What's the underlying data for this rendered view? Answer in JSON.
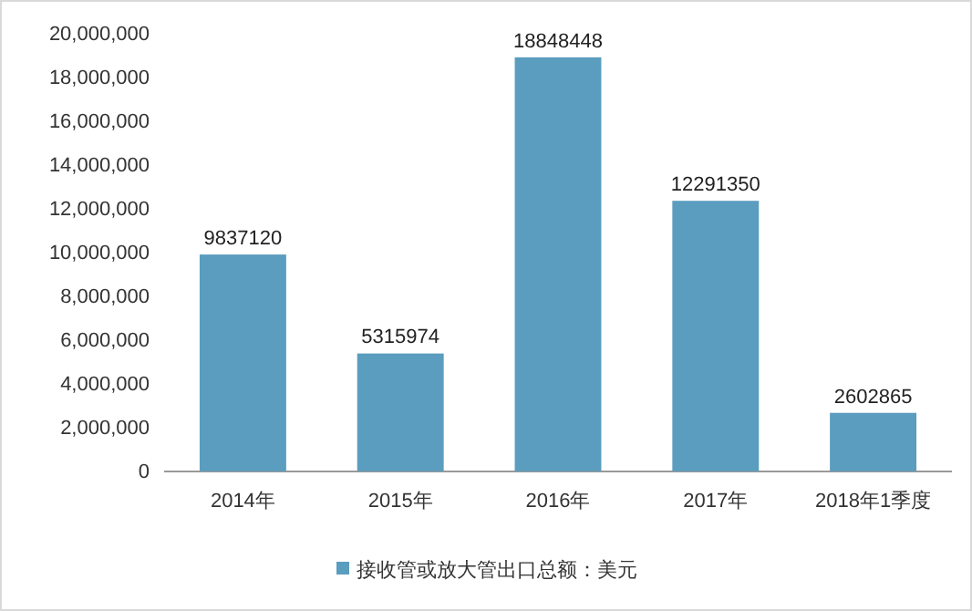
{
  "chart_data": {
    "type": "bar",
    "categories": [
      "2014年",
      "2015年",
      "2016年",
      "2017年",
      "2018年1季度"
    ],
    "series": [
      {
        "name": "接收管或放大管出口总额：美元",
        "color": "#5b9dbf",
        "values": [
          9837120,
          5315974,
          18848448,
          12291350,
          2602865
        ]
      }
    ],
    "ylim": [
      0,
      20000000
    ],
    "yticks": [
      {
        "value": 0,
        "label": "0"
      },
      {
        "value": 2000000,
        "label": "2,000,000"
      },
      {
        "value": 4000000,
        "label": "4,000,000"
      },
      {
        "value": 6000000,
        "label": "6,000,000"
      },
      {
        "value": 8000000,
        "label": "8,000,000"
      },
      {
        "value": 10000000,
        "label": "10,000,000"
      },
      {
        "value": 12000000,
        "label": "12,000,000"
      },
      {
        "value": 14000000,
        "label": "14,000,000"
      },
      {
        "value": 16000000,
        "label": "16,000,000"
      },
      {
        "value": 18000000,
        "label": "18,000,000"
      },
      {
        "value": 20000000,
        "label": "20,000,000"
      }
    ],
    "data_labels": true,
    "grid": false,
    "legend": "bottom"
  }
}
